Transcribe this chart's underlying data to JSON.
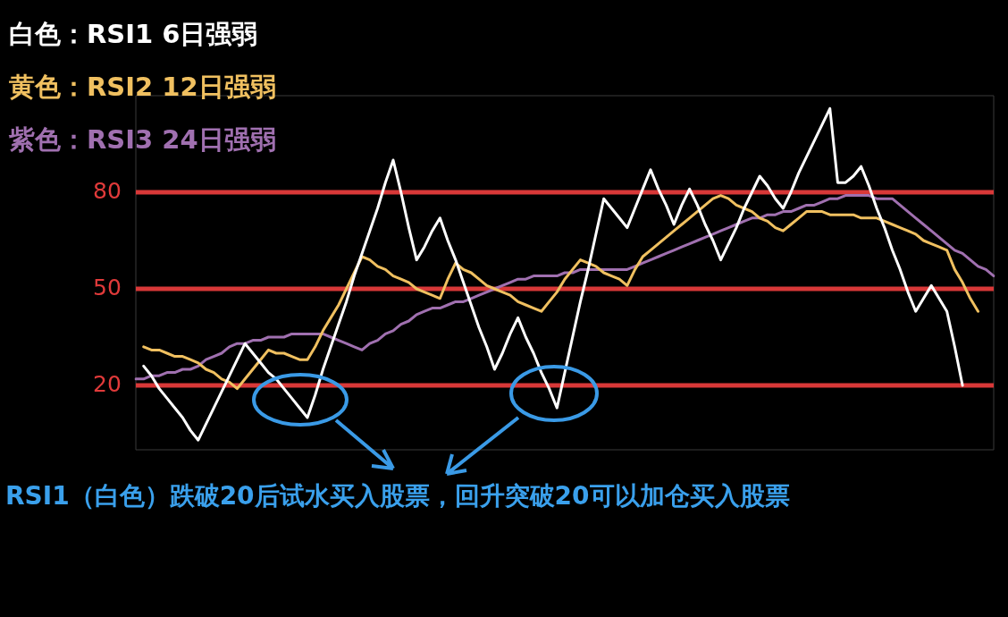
{
  "chart_data": {
    "type": "line",
    "categories": [
      null,
      null,
      null,
      null,
      null,
      null,
      null,
      null,
      null,
      null,
      null,
      null,
      null,
      null,
      null,
      null,
      null,
      null,
      null,
      null,
      null,
      null,
      null,
      null,
      null,
      null,
      null,
      null,
      null,
      null,
      null,
      null,
      null,
      null,
      null,
      null,
      null,
      null,
      null,
      null,
      null,
      null,
      null,
      null,
      null,
      null,
      null,
      null,
      null,
      null,
      null,
      null,
      null,
      null,
      null,
      null,
      null,
      null,
      null,
      null,
      null,
      null,
      null,
      null,
      null,
      null,
      null,
      null,
      null,
      null,
      null,
      null,
      null,
      null,
      null,
      null,
      null,
      null,
      null,
      null,
      null,
      null,
      null,
      null,
      null,
      null,
      null,
      null,
      null,
      null,
      null,
      null,
      null,
      null,
      null,
      null,
      null,
      null,
      null,
      null,
      null,
      null,
      null,
      null,
      null,
      null,
      null,
      null,
      null,
      null,
      null
    ],
    "ylim": [
      0,
      110
    ],
    "yticks": [
      20,
      50,
      80
    ],
    "tick_labels": "y",
    "marker": "none",
    "line_style": "solid",
    "series": [
      {
        "name": "白色：RSI1 6日强弱",
        "color": "#ffffff",
        "values": [
          null,
          26,
          23,
          19,
          16,
          13,
          10,
          6,
          3,
          8,
          13,
          18,
          23,
          28,
          33,
          30,
          27,
          24,
          22,
          19,
          16,
          13,
          10,
          17,
          25,
          32,
          39,
          46,
          54,
          61,
          68,
          75,
          83,
          90,
          80,
          69,
          59,
          63,
          68,
          72,
          65,
          59,
          52,
          45,
          38,
          32,
          25,
          30,
          36,
          41,
          35,
          30,
          24,
          19,
          13,
          24,
          35,
          46,
          56,
          67,
          78,
          75,
          72,
          69,
          75,
          81,
          87,
          81,
          76,
          70,
          76,
          81,
          76,
          70,
          65,
          59,
          64,
          69,
          75,
          80,
          85,
          82,
          78,
          75,
          80,
          86,
          91,
          96,
          101,
          106,
          83,
          83,
          85,
          88,
          82,
          75,
          69,
          62,
          56,
          49,
          43,
          47,
          51,
          47,
          43,
          32,
          20,
          null,
          null,
          null,
          null
        ]
      },
      {
        "name": "黄色：RSI2 12日强弱",
        "color": "#f0c060",
        "values": [
          null,
          32,
          31,
          31,
          30,
          29,
          29,
          28,
          27,
          25,
          24,
          22,
          21,
          19,
          22,
          25,
          28,
          31,
          30,
          30,
          29,
          28,
          28,
          32,
          37,
          41,
          45,
          50,
          55,
          60,
          59,
          57,
          56,
          54,
          53,
          52,
          50,
          49,
          48,
          47,
          53,
          58,
          56,
          55,
          53,
          51,
          50,
          49,
          48,
          46,
          45,
          44,
          43,
          46,
          49,
          53,
          56,
          59,
          58,
          57,
          55,
          54,
          53,
          51,
          56,
          60,
          62,
          64,
          66,
          68,
          70,
          72,
          74,
          76,
          78,
          79,
          78,
          76,
          75,
          74,
          72,
          71,
          69,
          68,
          70,
          72,
          74,
          74,
          74,
          73,
          73,
          73,
          73,
          72,
          72,
          72,
          71,
          70,
          69,
          68,
          67,
          65,
          64,
          63,
          62,
          56,
          52,
          47,
          43,
          null,
          null
        ]
      },
      {
        "name": "紫色：RSI3 24日强弱",
        "color": "#a070b0",
        "values": [
          22,
          22,
          23,
          23,
          24,
          24,
          25,
          25,
          26,
          28,
          29,
          30,
          32,
          33,
          33,
          34,
          34,
          35,
          35,
          35,
          36,
          36,
          36,
          36,
          36,
          35,
          34,
          33,
          32,
          31,
          33,
          34,
          36,
          37,
          39,
          40,
          42,
          43,
          44,
          44,
          45,
          46,
          46,
          47,
          48,
          49,
          50,
          51,
          52,
          53,
          53,
          54,
          54,
          54,
          54,
          55,
          55,
          56,
          56,
          56,
          56,
          56,
          56,
          56,
          57,
          58,
          59,
          60,
          61,
          62,
          63,
          64,
          65,
          66,
          67,
          68,
          69,
          70,
          71,
          72,
          72,
          73,
          73,
          74,
          74,
          75,
          76,
          76,
          77,
          78,
          78,
          79,
          79,
          79,
          79,
          78,
          78,
          78,
          76,
          74,
          72,
          70,
          68,
          66,
          64,
          62,
          61,
          59,
          57,
          56,
          54
        ]
      }
    ],
    "ref_lines": [
      {
        "axis": "y",
        "value": 80,
        "color": "#d83838"
      },
      {
        "axis": "y",
        "value": 50,
        "color": "#d83838"
      },
      {
        "axis": "y",
        "value": 20,
        "color": "#d83838"
      }
    ],
    "annotations": [
      "RSI1（白色）跌破20后试水买入股票，回升突破20可以加仓买入股票"
    ]
  }
}
